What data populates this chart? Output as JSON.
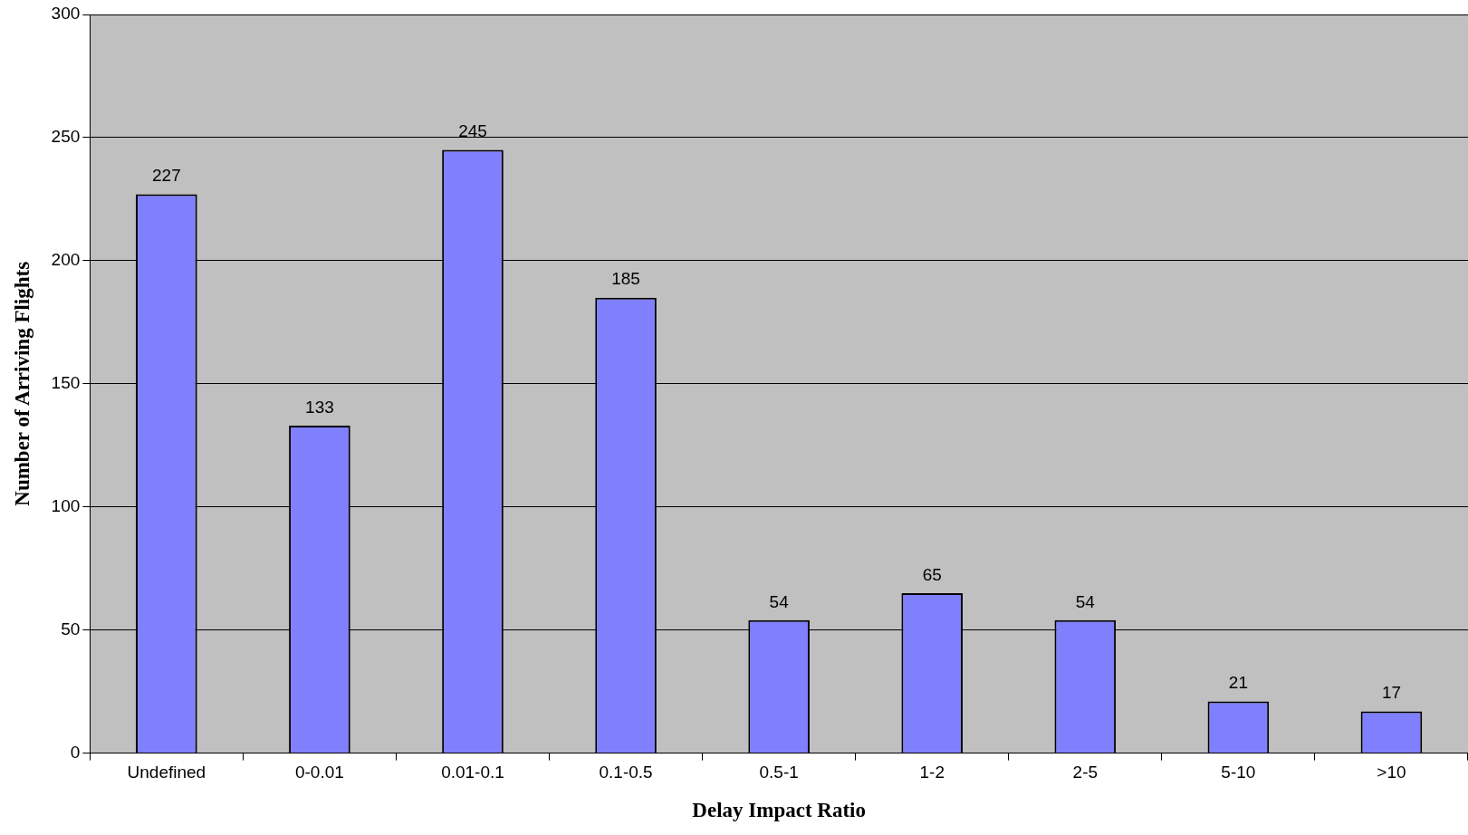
{
  "chart_data": {
    "type": "bar",
    "xlabel": "Delay Impact Ratio",
    "ylabel": "Number of Arriving Flights",
    "categories": [
      "Undefined",
      "0-0.01",
      "0.01-0.1",
      "0.1-0.5",
      "0.5-1",
      "1-2",
      "2-5",
      "5-10",
      ">10"
    ],
    "values": [
      227,
      133,
      245,
      185,
      54,
      65,
      54,
      21,
      17
    ],
    "color": "#8080ff",
    "ylim": [
      0,
      300
    ],
    "yticks": [
      0,
      50,
      100,
      150,
      200,
      250,
      300
    ],
    "grid": "y",
    "legend": false,
    "data_labels": true
  }
}
